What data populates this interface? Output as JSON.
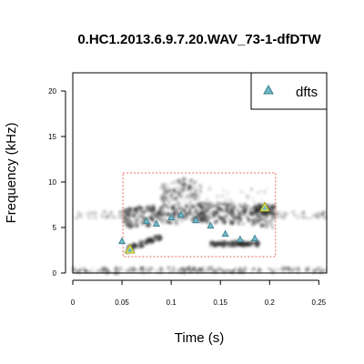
{
  "chart_data": {
    "type": "scatter",
    "title": "0.HC1.2013.6.9.7.20.WAV_73-1-dfDTW",
    "xlabel": "Time (s)",
    "ylabel": "Frequency (kHz)",
    "xlim": [
      0,
      0.258
    ],
    "ylim": [
      0,
      22
    ],
    "x_ticks": [
      0,
      0.05,
      0.1,
      0.15,
      0.2,
      0.25
    ],
    "x_tick_labels": [
      "0",
      "0.05",
      "0.1",
      "0.15",
      "0.2",
      "0.25"
    ],
    "y_ticks": [
      0,
      5,
      10,
      15,
      20
    ],
    "y_tick_labels": [
      "0",
      "5",
      "10",
      "15",
      "20"
    ],
    "legend": {
      "placement": "top-right",
      "entries": [
        "dfts"
      ]
    },
    "grid": false,
    "selection_box": {
      "x": [
        0.051,
        0.206
      ],
      "y": [
        1.8,
        11.0
      ],
      "color": "#e86a5a"
    },
    "series": [
      {
        "name": "dfts",
        "color": "#6fb6c6",
        "marker": "triangle",
        "points": [
          {
            "x": 0.05,
            "y": 3.5
          },
          {
            "x": 0.058,
            "y": 2.6
          },
          {
            "x": 0.075,
            "y": 5.7
          },
          {
            "x": 0.085,
            "y": 5.4
          },
          {
            "x": 0.1,
            "y": 6.1
          },
          {
            "x": 0.11,
            "y": 6.4
          },
          {
            "x": 0.125,
            "y": 5.8
          },
          {
            "x": 0.14,
            "y": 5.2
          },
          {
            "x": 0.155,
            "y": 4.3
          },
          {
            "x": 0.17,
            "y": 3.7
          },
          {
            "x": 0.185,
            "y": 3.8
          },
          {
            "x": 0.195,
            "y": 7.2
          }
        ]
      }
    ],
    "highlighted_points": [
      {
        "x": 0.058,
        "y": 2.6,
        "color": "#e6e84a"
      },
      {
        "x": 0.195,
        "y": 7.2,
        "color": "#e6e84a"
      }
    ]
  }
}
